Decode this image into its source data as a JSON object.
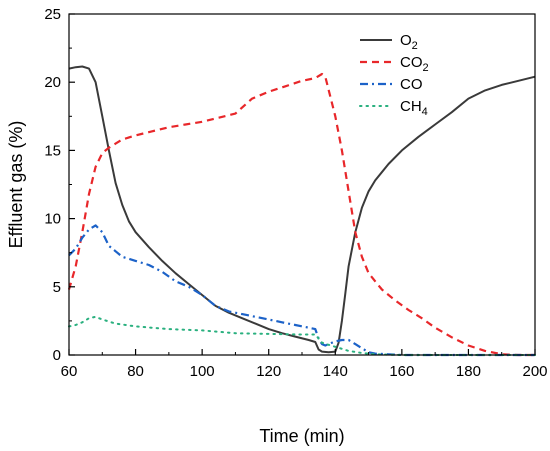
{
  "chart_data": {
    "type": "line",
    "title": "",
    "xlabel": "Time (min)",
    "ylabel": "Effluent gas (%)",
    "xlim": [
      60,
      200
    ],
    "ylim": [
      0,
      25
    ],
    "xticks": [
      60,
      80,
      100,
      120,
      140,
      160,
      180,
      200
    ],
    "yticks": [
      0,
      5,
      10,
      15,
      20,
      25
    ],
    "grid": false,
    "legend_position": "top-right",
    "series": [
      {
        "name": "O2",
        "legend_base": "O",
        "legend_sub": "2",
        "color": "#3a3a3a",
        "style": "solid",
        "x": [
          60,
          62,
          64,
          66,
          68,
          70,
          72,
          74,
          76,
          78,
          80,
          84,
          88,
          92,
          96,
          100,
          104,
          108,
          112,
          116,
          120,
          124,
          128,
          132,
          134,
          135,
          136,
          138,
          140,
          141,
          142,
          143,
          144,
          146,
          148,
          150,
          152,
          156,
          160,
          165,
          170,
          175,
          180,
          185,
          190,
          195,
          200
        ],
        "y": [
          21.0,
          21.1,
          21.15,
          21.0,
          20.0,
          17.5,
          15.0,
          12.6,
          11.0,
          9.8,
          9.0,
          7.9,
          6.9,
          6.0,
          5.2,
          4.4,
          3.6,
          3.1,
          2.7,
          2.3,
          1.9,
          1.6,
          1.35,
          1.1,
          0.95,
          0.4,
          0.25,
          0.2,
          0.25,
          0.9,
          2.5,
          4.5,
          6.5,
          9.0,
          10.8,
          12.0,
          12.8,
          14.0,
          15.0,
          16.0,
          16.9,
          17.8,
          18.8,
          19.4,
          19.8,
          20.1,
          20.4
        ]
      },
      {
        "name": "CO2",
        "legend_base": "CO",
        "legend_sub": "2",
        "color": "#e8272a",
        "style": "dashed",
        "x": [
          60,
          62,
          64,
          66,
          68,
          70,
          72,
          74,
          76,
          80,
          85,
          90,
          95,
          100,
          105,
          110,
          115,
          120,
          125,
          130,
          134,
          136,
          137,
          140,
          142,
          144,
          146,
          148,
          150,
          154,
          158,
          162,
          166,
          170,
          175,
          180,
          185,
          190,
          195,
          200
        ],
        "y": [
          4.8,
          6.5,
          9.0,
          11.8,
          13.8,
          14.8,
          15.2,
          15.5,
          15.8,
          16.1,
          16.4,
          16.7,
          16.9,
          17.1,
          17.4,
          17.7,
          18.8,
          19.3,
          19.7,
          20.1,
          20.3,
          20.6,
          20.4,
          17.5,
          15.0,
          12.0,
          9.0,
          7.2,
          6.0,
          4.8,
          4.0,
          3.3,
          2.7,
          2.0,
          1.3,
          0.7,
          0.3,
          0.05,
          0.0,
          0.0
        ]
      },
      {
        "name": "CO",
        "legend_base": "CO",
        "legend_sub": "",
        "color": "#1c62c8",
        "style": "dashdot",
        "x": [
          60,
          62,
          64,
          66,
          68,
          70,
          72,
          74,
          76,
          80,
          84,
          88,
          92,
          96,
          100,
          104,
          108,
          112,
          116,
          120,
          124,
          128,
          132,
          134,
          135,
          136,
          137,
          138,
          140,
          142,
          144,
          146,
          148,
          150,
          152,
          156,
          160,
          170,
          180,
          190,
          200
        ],
        "y": [
          7.3,
          7.8,
          8.6,
          9.2,
          9.5,
          9.0,
          8.0,
          7.6,
          7.2,
          6.9,
          6.6,
          6.1,
          5.4,
          5.0,
          4.4,
          3.6,
          3.2,
          3.0,
          2.8,
          2.6,
          2.4,
          2.2,
          2.0,
          1.9,
          1.2,
          0.8,
          0.7,
          0.8,
          1.0,
          1.1,
          1.1,
          0.8,
          0.5,
          0.2,
          0.1,
          0.05,
          0.0,
          0.0,
          0.0,
          0.0,
          0.0
        ]
      },
      {
        "name": "CH4",
        "legend_base": "CH",
        "legend_sub": "4",
        "color": "#2ab07f",
        "style": "dotted",
        "x": [
          60,
          62,
          64,
          66,
          68,
          70,
          74,
          80,
          90,
          100,
          110,
          120,
          130,
          134,
          136,
          138,
          140,
          144,
          148,
          152,
          160,
          170,
          180,
          190,
          200
        ],
        "y": [
          2.1,
          2.2,
          2.4,
          2.7,
          2.8,
          2.6,
          2.3,
          2.1,
          1.9,
          1.8,
          1.6,
          1.55,
          1.5,
          1.5,
          0.9,
          0.75,
          0.6,
          0.3,
          0.15,
          0.05,
          0.0,
          0.0,
          0.0,
          0.0,
          0.0
        ]
      }
    ]
  }
}
